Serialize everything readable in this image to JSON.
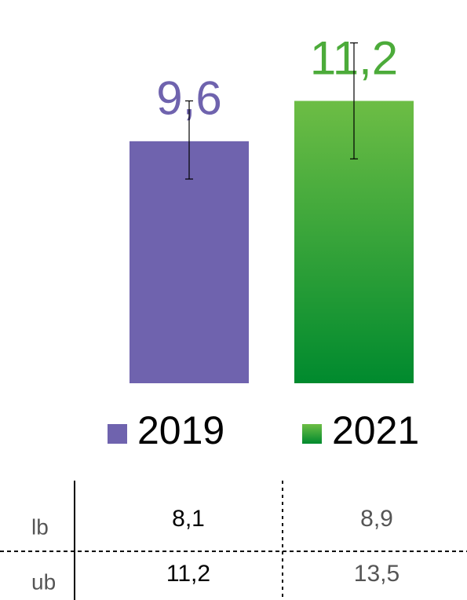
{
  "chart_data": {
    "type": "bar",
    "categories": [
      "2019",
      "2021"
    ],
    "series": [
      {
        "name": "2019",
        "color": "#6f63ae"
      },
      {
        "name": "2021",
        "color": "#4cab3a"
      }
    ],
    "values": [
      9.6,
      11.2
    ],
    "value_labels": [
      "9,6",
      "11,2"
    ],
    "error_low": [
      8.1,
      8.9
    ],
    "error_high": [
      11.2,
      13.5
    ]
  },
  "table": {
    "row_labels": [
      "lb",
      "ub"
    ],
    "rows": [
      [
        "8,1",
        "8,9"
      ],
      [
        "11,2",
        "13,5"
      ]
    ]
  }
}
